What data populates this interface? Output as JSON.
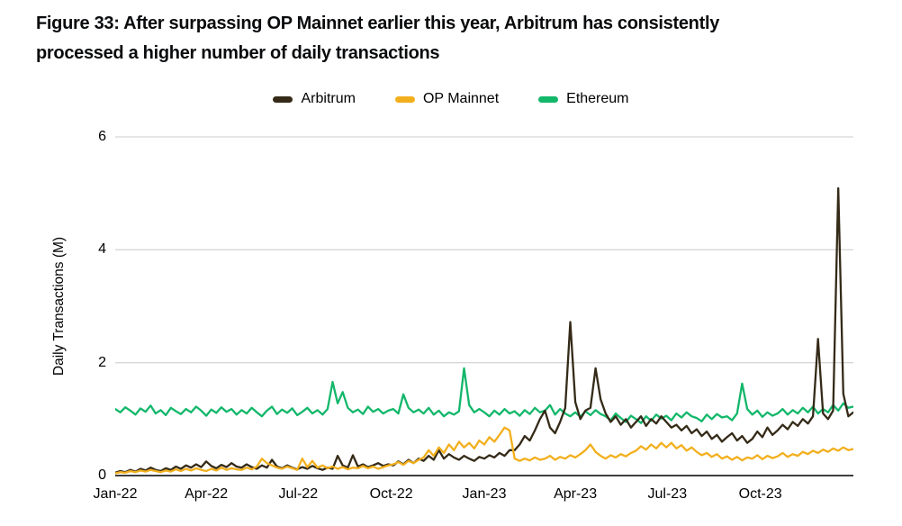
{
  "figure": {
    "title_line1": "Figure 33: After surpassing OP Mainnet earlier this year, Arbitrum has consistently",
    "title_line2": "processed a higher number of daily transactions"
  },
  "chart_data": {
    "type": "line",
    "title": "Figure 33: After surpassing OP Mainnet earlier this year, Arbitrum has consistently processed a higher number of daily transactions",
    "xlabel": "",
    "ylabel": "Daily Transactions (M)",
    "ylim": [
      0,
      6
    ],
    "yticks": [
      0,
      2,
      4,
      6
    ],
    "grid": "horizontal",
    "legend_position": "top-center",
    "x_unit": "days since Jan-2022",
    "x_total_days": 730,
    "x_step_days": 5,
    "xticks": [
      {
        "label": "Jan-22",
        "day": 0
      },
      {
        "label": "Apr-22",
        "day": 90
      },
      {
        "label": "Jul-22",
        "day": 181
      },
      {
        "label": "Oct-22",
        "day": 273
      },
      {
        "label": "Jan-23",
        "day": 365
      },
      {
        "label": "Apr-23",
        "day": 455
      },
      {
        "label": "Jul-23",
        "day": 546
      },
      {
        "label": "Oct-23",
        "day": 638
      }
    ],
    "series": [
      {
        "name": "Arbitrum",
        "color": "#342a17",
        "z": 2,
        "values": [
          0.05,
          0.08,
          0.06,
          0.1,
          0.07,
          0.12,
          0.09,
          0.14,
          0.1,
          0.08,
          0.13,
          0.1,
          0.16,
          0.12,
          0.18,
          0.14,
          0.2,
          0.15,
          0.25,
          0.17,
          0.13,
          0.19,
          0.15,
          0.22,
          0.16,
          0.14,
          0.2,
          0.15,
          0.12,
          0.18,
          0.14,
          0.28,
          0.16,
          0.13,
          0.18,
          0.14,
          0.11,
          0.15,
          0.12,
          0.17,
          0.13,
          0.1,
          0.14,
          0.12,
          0.35,
          0.18,
          0.14,
          0.36,
          0.16,
          0.2,
          0.15,
          0.18,
          0.22,
          0.17,
          0.2,
          0.18,
          0.25,
          0.2,
          0.28,
          0.22,
          0.3,
          0.26,
          0.35,
          0.28,
          0.45,
          0.3,
          0.38,
          0.32,
          0.28,
          0.35,
          0.3,
          0.26,
          0.33,
          0.3,
          0.36,
          0.32,
          0.4,
          0.35,
          0.45,
          0.45,
          0.55,
          0.7,
          0.62,
          0.8,
          1.0,
          1.15,
          0.85,
          0.75,
          0.95,
          1.2,
          2.72,
          1.3,
          1.0,
          1.15,
          1.2,
          1.9,
          1.35,
          1.1,
          0.95,
          1.05,
          0.9,
          1.0,
          0.85,
          0.95,
          1.05,
          0.88,
          1.0,
          0.92,
          1.05,
          0.95,
          0.85,
          0.9,
          0.8,
          0.88,
          0.75,
          0.82,
          0.7,
          0.78,
          0.65,
          0.72,
          0.6,
          0.68,
          0.75,
          0.62,
          0.7,
          0.58,
          0.65,
          0.78,
          0.68,
          0.85,
          0.72,
          0.8,
          0.9,
          0.82,
          0.95,
          0.88,
          1.0,
          0.92,
          1.05,
          2.42,
          1.1,
          1.0,
          1.15,
          5.09,
          1.45,
          1.05,
          1.12
        ]
      },
      {
        "name": "OP Mainnet",
        "color": "#f2af1d",
        "z": 3,
        "values": [
          0.04,
          0.06,
          0.05,
          0.08,
          0.06,
          0.09,
          0.07,
          0.1,
          0.08,
          0.06,
          0.09,
          0.07,
          0.11,
          0.08,
          0.12,
          0.09,
          0.13,
          0.1,
          0.08,
          0.12,
          0.09,
          0.14,
          0.1,
          0.13,
          0.11,
          0.1,
          0.14,
          0.11,
          0.16,
          0.3,
          0.22,
          0.18,
          0.14,
          0.12,
          0.16,
          0.13,
          0.1,
          0.3,
          0.15,
          0.26,
          0.14,
          0.18,
          0.13,
          0.16,
          0.12,
          0.15,
          0.11,
          0.14,
          0.13,
          0.17,
          0.13,
          0.16,
          0.12,
          0.15,
          0.18,
          0.2,
          0.24,
          0.19,
          0.26,
          0.22,
          0.28,
          0.32,
          0.45,
          0.35,
          0.5,
          0.4,
          0.55,
          0.45,
          0.6,
          0.5,
          0.58,
          0.48,
          0.62,
          0.55,
          0.68,
          0.6,
          0.72,
          0.85,
          0.8,
          0.3,
          0.26,
          0.3,
          0.27,
          0.32,
          0.28,
          0.3,
          0.35,
          0.28,
          0.33,
          0.3,
          0.36,
          0.32,
          0.38,
          0.45,
          0.55,
          0.42,
          0.35,
          0.3,
          0.36,
          0.32,
          0.38,
          0.34,
          0.4,
          0.44,
          0.52,
          0.46,
          0.55,
          0.48,
          0.58,
          0.5,
          0.58,
          0.48,
          0.54,
          0.44,
          0.5,
          0.42,
          0.36,
          0.4,
          0.33,
          0.38,
          0.3,
          0.34,
          0.28,
          0.33,
          0.27,
          0.32,
          0.3,
          0.36,
          0.29,
          0.35,
          0.31,
          0.34,
          0.4,
          0.33,
          0.38,
          0.35,
          0.42,
          0.38,
          0.44,
          0.4,
          0.46,
          0.42,
          0.48,
          0.44,
          0.5,
          0.45,
          0.47
        ]
      },
      {
        "name": "Ethereum",
        "color": "#12b76a",
        "z": 1,
        "values": [
          1.18,
          1.12,
          1.21,
          1.15,
          1.08,
          1.19,
          1.13,
          1.24,
          1.1,
          1.16,
          1.07,
          1.2,
          1.14,
          1.09,
          1.18,
          1.12,
          1.22,
          1.15,
          1.06,
          1.17,
          1.11,
          1.21,
          1.13,
          1.18,
          1.08,
          1.16,
          1.1,
          1.2,
          1.12,
          1.05,
          1.15,
          1.22,
          1.09,
          1.17,
          1.11,
          1.19,
          1.07,
          1.13,
          1.2,
          1.1,
          1.16,
          1.08,
          1.18,
          1.66,
          1.28,
          1.48,
          1.2,
          1.12,
          1.17,
          1.09,
          1.22,
          1.13,
          1.18,
          1.1,
          1.15,
          1.18,
          1.1,
          1.44,
          1.2,
          1.12,
          1.17,
          1.1,
          1.2,
          1.08,
          1.15,
          1.05,
          1.12,
          1.08,
          1.14,
          1.9,
          1.25,
          1.12,
          1.18,
          1.12,
          1.05,
          1.15,
          1.08,
          1.18,
          1.1,
          1.14,
          1.06,
          1.16,
          1.09,
          1.2,
          1.12,
          1.15,
          1.25,
          1.08,
          1.18,
          1.1,
          1.05,
          1.12,
          1.04,
          1.14,
          1.07,
          1.16,
          1.09,
          1.05,
          0.98,
          1.1,
          1.02,
          0.95,
          1.06,
          1.0,
          0.93,
          1.05,
          0.97,
          1.08,
          1.01,
          1.06,
          0.98,
          1.1,
          1.03,
          1.12,
          1.05,
          1.02,
          0.96,
          1.08,
          1.0,
          1.09,
          1.03,
          1.05,
          0.98,
          1.1,
          1.63,
          1.18,
          1.08,
          1.15,
          1.04,
          1.12,
          1.06,
          1.1,
          1.18,
          1.08,
          1.16,
          1.1,
          1.2,
          1.12,
          1.22,
          1.1,
          1.18,
          1.12,
          1.25,
          1.15,
          1.28,
          1.2,
          1.22
        ]
      }
    ],
    "colors": {
      "gridline": "#d7d7d7",
      "axis_line": "#3f3f3f",
      "text": "#000000",
      "title": "#0a0b0d"
    }
  }
}
